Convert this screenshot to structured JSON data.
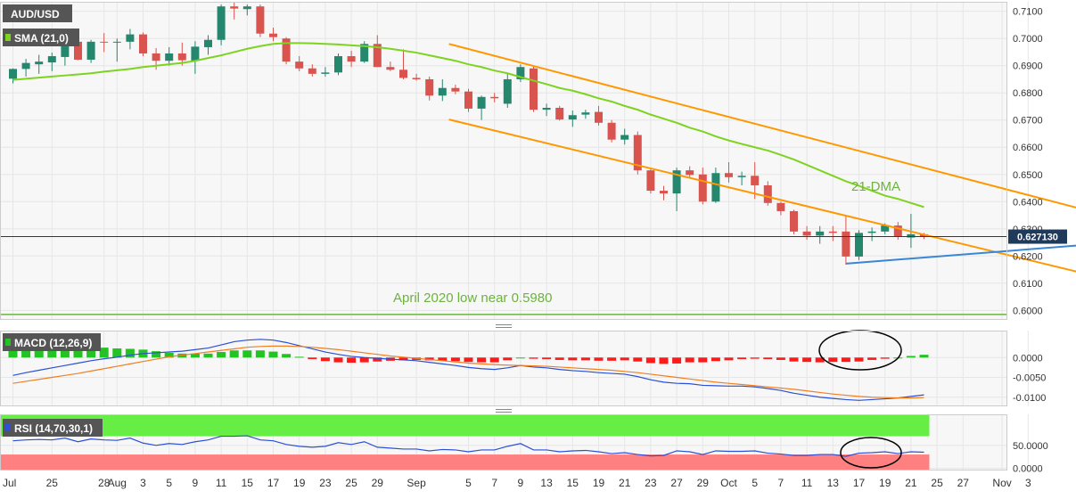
{
  "colors": {
    "up": "#26876f",
    "down": "#d9534f",
    "sma": "#7ed321",
    "channel": "#ff9800",
    "support": "#3a86d6",
    "price_line": "#1f3a5a",
    "panel_bg": "#f7f7f7",
    "grid": "#e6e6e6",
    "label_bg": "#555555",
    "macd_line": "#2b4fd6",
    "signal_line": "#f07f22",
    "hist_pos": "#22c322",
    "hist_neg": "#ff1a1a",
    "rsi_line": "#2b4fd6",
    "rsi_over": "#66ee44",
    "rsi_under": "#ff8080",
    "annotation_green": "#6cb33e"
  },
  "chart_data": [
    {
      "type": "candlestick",
      "symbol_label": "AUD/USD",
      "indicator_label": "SMA (21,0)",
      "last_price_label": "0.627130",
      "last_price": 0.62713,
      "ylim": [
        0.5965,
        0.7135
      ],
      "y_ticks": [
        "0.7100",
        "0.7000",
        "0.6900",
        "0.6800",
        "0.6700",
        "0.6600",
        "0.6500",
        "0.6400",
        "0.6300",
        "0.6200",
        "0.6100",
        "0.6000"
      ],
      "x_ticks": [
        "Jul",
        "25",
        "28",
        "Aug",
        "3",
        "5",
        "9",
        "11",
        "15",
        "17",
        "19",
        "23",
        "25",
        "29",
        "Sep",
        "5",
        "7",
        "9",
        "13",
        "15",
        "19",
        "21",
        "23",
        "27",
        "29",
        "Oct",
        "5",
        "7",
        "11",
        "13",
        "17",
        "19",
        "21",
        "25",
        "27",
        "Nov",
        "3"
      ],
      "candles": [
        {
          "o": 0.6852,
          "h": 0.689,
          "l": 0.6835,
          "c": 0.6888
        },
        {
          "o": 0.6888,
          "h": 0.6925,
          "l": 0.686,
          "c": 0.691
        },
        {
          "o": 0.6905,
          "h": 0.694,
          "l": 0.687,
          "c": 0.6915
        },
        {
          "o": 0.6912,
          "h": 0.6948,
          "l": 0.688,
          "c": 0.6935
        },
        {
          "o": 0.6932,
          "h": 0.6995,
          "l": 0.69,
          "c": 0.6988
        },
        {
          "o": 0.6988,
          "h": 0.7002,
          "l": 0.692,
          "c": 0.6922
        },
        {
          "o": 0.6922,
          "h": 0.6995,
          "l": 0.691,
          "c": 0.6988
        },
        {
          "o": 0.6988,
          "h": 0.702,
          "l": 0.695,
          "c": 0.6985
        },
        {
          "o": 0.6985,
          "h": 0.7,
          "l": 0.6915,
          "c": 0.6988
        },
        {
          "o": 0.6988,
          "h": 0.7035,
          "l": 0.696,
          "c": 0.7015
        },
        {
          "o": 0.7015,
          "h": 0.7022,
          "l": 0.6935,
          "c": 0.6945
        },
        {
          "o": 0.6945,
          "h": 0.6965,
          "l": 0.6885,
          "c": 0.6918
        },
        {
          "o": 0.6918,
          "h": 0.6968,
          "l": 0.69,
          "c": 0.6945
        },
        {
          "o": 0.6945,
          "h": 0.6985,
          "l": 0.69,
          "c": 0.692
        },
        {
          "o": 0.6918,
          "h": 0.699,
          "l": 0.687,
          "c": 0.697
        },
        {
          "o": 0.6968,
          "h": 0.7012,
          "l": 0.694,
          "c": 0.6995
        },
        {
          "o": 0.6995,
          "h": 0.7125,
          "l": 0.6975,
          "c": 0.7118
        },
        {
          "o": 0.7118,
          "h": 0.7135,
          "l": 0.707,
          "c": 0.711
        },
        {
          "o": 0.7108,
          "h": 0.7125,
          "l": 0.7085,
          "c": 0.7118
        },
        {
          "o": 0.7118,
          "h": 0.7125,
          "l": 0.7005,
          "c": 0.7018
        },
        {
          "o": 0.7018,
          "h": 0.704,
          "l": 0.699,
          "c": 0.7005
        },
        {
          "o": 0.7,
          "h": 0.7005,
          "l": 0.6905,
          "c": 0.6915
        },
        {
          "o": 0.6915,
          "h": 0.6935,
          "l": 0.688,
          "c": 0.689
        },
        {
          "o": 0.689,
          "h": 0.6905,
          "l": 0.686,
          "c": 0.687
        },
        {
          "o": 0.687,
          "h": 0.6895,
          "l": 0.686,
          "c": 0.6875
        },
        {
          "o": 0.6875,
          "h": 0.6945,
          "l": 0.6865,
          "c": 0.6935
        },
        {
          "o": 0.6935,
          "h": 0.6955,
          "l": 0.6895,
          "c": 0.6915
        },
        {
          "o": 0.6915,
          "h": 0.699,
          "l": 0.691,
          "c": 0.698
        },
        {
          "o": 0.698,
          "h": 0.7012,
          "l": 0.6895,
          "c": 0.6895
        },
        {
          "o": 0.6895,
          "h": 0.6915,
          "l": 0.688,
          "c": 0.6885
        },
        {
          "o": 0.6885,
          "h": 0.696,
          "l": 0.685,
          "c": 0.6855
        },
        {
          "o": 0.6855,
          "h": 0.687,
          "l": 0.6845,
          "c": 0.685
        },
        {
          "o": 0.685,
          "h": 0.686,
          "l": 0.6772,
          "c": 0.679
        },
        {
          "o": 0.679,
          "h": 0.685,
          "l": 0.677,
          "c": 0.6818
        },
        {
          "o": 0.6818,
          "h": 0.683,
          "l": 0.6795,
          "c": 0.6805
        },
        {
          "o": 0.6805,
          "h": 0.6815,
          "l": 0.673,
          "c": 0.6742
        },
        {
          "o": 0.6742,
          "h": 0.679,
          "l": 0.67,
          "c": 0.6785
        },
        {
          "o": 0.6785,
          "h": 0.68,
          "l": 0.6765,
          "c": 0.678
        },
        {
          "o": 0.676,
          "h": 0.687,
          "l": 0.6745,
          "c": 0.685
        },
        {
          "o": 0.685,
          "h": 0.6905,
          "l": 0.684,
          "c": 0.6895
        },
        {
          "o": 0.689,
          "h": 0.69,
          "l": 0.673,
          "c": 0.6738
        },
        {
          "o": 0.6738,
          "h": 0.676,
          "l": 0.6715,
          "c": 0.6745
        },
        {
          "o": 0.6745,
          "h": 0.6752,
          "l": 0.6698,
          "c": 0.6702
        },
        {
          "o": 0.6702,
          "h": 0.6735,
          "l": 0.6675,
          "c": 0.6718
        },
        {
          "o": 0.672,
          "h": 0.6738,
          "l": 0.6705,
          "c": 0.6728
        },
        {
          "o": 0.673,
          "h": 0.6752,
          "l": 0.668,
          "c": 0.669
        },
        {
          "o": 0.669,
          "h": 0.67,
          "l": 0.6618,
          "c": 0.6628
        },
        {
          "o": 0.6628,
          "h": 0.6668,
          "l": 0.661,
          "c": 0.6645
        },
        {
          "o": 0.6645,
          "h": 0.6658,
          "l": 0.65,
          "c": 0.6515
        },
        {
          "o": 0.6515,
          "h": 0.652,
          "l": 0.643,
          "c": 0.644
        },
        {
          "o": 0.644,
          "h": 0.6458,
          "l": 0.6405,
          "c": 0.643
        },
        {
          "o": 0.643,
          "h": 0.6525,
          "l": 0.6365,
          "c": 0.6515
        },
        {
          "o": 0.6515,
          "h": 0.653,
          "l": 0.6485,
          "c": 0.6498
        },
        {
          "o": 0.65,
          "h": 0.6525,
          "l": 0.639,
          "c": 0.64
        },
        {
          "o": 0.64,
          "h": 0.6525,
          "l": 0.6395,
          "c": 0.6505
        },
        {
          "o": 0.6505,
          "h": 0.6545,
          "l": 0.647,
          "c": 0.649
        },
        {
          "o": 0.649,
          "h": 0.651,
          "l": 0.646,
          "c": 0.6495
        },
        {
          "o": 0.6495,
          "h": 0.6545,
          "l": 0.641,
          "c": 0.646
        },
        {
          "o": 0.646,
          "h": 0.6475,
          "l": 0.6385,
          "c": 0.6395
        },
        {
          "o": 0.6395,
          "h": 0.64,
          "l": 0.635,
          "c": 0.6365
        },
        {
          "o": 0.6365,
          "h": 0.637,
          "l": 0.628,
          "c": 0.629
        },
        {
          "o": 0.629,
          "h": 0.631,
          "l": 0.626,
          "c": 0.6275
        },
        {
          "o": 0.6275,
          "h": 0.631,
          "l": 0.6245,
          "c": 0.629
        },
        {
          "o": 0.629,
          "h": 0.631,
          "l": 0.6255,
          "c": 0.6285
        },
        {
          "o": 0.629,
          "h": 0.6345,
          "l": 0.6168,
          "c": 0.6198
        },
        {
          "o": 0.6198,
          "h": 0.6295,
          "l": 0.6185,
          "c": 0.6285
        },
        {
          "o": 0.6285,
          "h": 0.6305,
          "l": 0.6255,
          "c": 0.629
        },
        {
          "o": 0.629,
          "h": 0.632,
          "l": 0.628,
          "c": 0.6312
        },
        {
          "o": 0.6312,
          "h": 0.6325,
          "l": 0.626,
          "c": 0.627
        },
        {
          "o": 0.6268,
          "h": 0.6355,
          "l": 0.623,
          "c": 0.628
        },
        {
          "o": 0.628,
          "h": 0.6285,
          "l": 0.6262,
          "c": 0.6271
        }
      ],
      "sma": [
        0.6848,
        0.6852,
        0.6856,
        0.686,
        0.6864,
        0.6868,
        0.6872,
        0.6878,
        0.6883,
        0.6888,
        0.6895,
        0.69,
        0.6905,
        0.691,
        0.6918,
        0.6928,
        0.6938,
        0.695,
        0.6962,
        0.6972,
        0.698,
        0.6983,
        0.6983,
        0.6982,
        0.698,
        0.6978,
        0.6975,
        0.6972,
        0.6968,
        0.6962,
        0.6955,
        0.6948,
        0.6938,
        0.6928,
        0.6918,
        0.6905,
        0.6895,
        0.6882,
        0.6872,
        0.6858,
        0.6845,
        0.6832,
        0.6818,
        0.6808,
        0.6795,
        0.678,
        0.6768,
        0.6752,
        0.6738,
        0.672,
        0.6705,
        0.669,
        0.6672,
        0.6658,
        0.664,
        0.6625,
        0.6612,
        0.66,
        0.6588,
        0.6572,
        0.6555,
        0.6535,
        0.6515,
        0.6495,
        0.6475,
        0.6458,
        0.644,
        0.6422,
        0.641,
        0.6395,
        0.638
      ],
      "lines": {
        "channel_upper": {
          "from": [
            33.5,
            0.698
          ],
          "to": [
            91,
            0.6262
          ]
        },
        "channel_lower": {
          "from": [
            33.5,
            0.6702
          ],
          "to": [
            91,
            0.6035
          ]
        },
        "support": {
          "from": [
            64,
            0.6172
          ],
          "to": [
            95,
            0.6288
          ]
        },
        "april_low_line": 0.5985
      },
      "annotations": {
        "dma_label": "21-DMA",
        "april_label": "April 2020 low near 0.5980"
      }
    },
    {
      "type": "bar+line",
      "indicator_label": "MACD (12,26,9)",
      "ylim": [
        -0.0123,
        0.0068
      ],
      "y_ticks": [
        "0.0000",
        "-0.0050",
        "-0.0100"
      ],
      "y_tick_values": [
        0,
        -0.005,
        -0.01
      ],
      "macd": [
        -0.0045,
        -0.0038,
        -0.0032,
        -0.0026,
        -0.002,
        -0.0014,
        -0.0008,
        -0.0003,
        0.0001,
        0.0006,
        0.001,
        0.0012,
        0.0014,
        0.0016,
        0.002,
        0.0024,
        0.0032,
        0.004,
        0.0044,
        0.0046,
        0.0044,
        0.0038,
        0.003,
        0.0022,
        0.0014,
        0.0008,
        0.0003,
        0.0,
        -0.0002,
        -0.0004,
        -0.0006,
        -0.0008,
        -0.0012,
        -0.0016,
        -0.002,
        -0.0025,
        -0.0028,
        -0.003,
        -0.0026,
        -0.002,
        -0.0024,
        -0.0026,
        -0.003,
        -0.0033,
        -0.0035,
        -0.0038,
        -0.004,
        -0.0042,
        -0.0048,
        -0.0056,
        -0.0062,
        -0.0065,
        -0.0066,
        -0.007,
        -0.0071,
        -0.0072,
        -0.0072,
        -0.0074,
        -0.0078,
        -0.0083,
        -0.009,
        -0.0095,
        -0.01,
        -0.0103,
        -0.0106,
        -0.0108,
        -0.0106,
        -0.0104,
        -0.0102,
        -0.0098,
        -0.0094
      ],
      "signal": [
        -0.0065,
        -0.006,
        -0.0055,
        -0.005,
        -0.0045,
        -0.004,
        -0.0034,
        -0.0028,
        -0.0022,
        -0.0016,
        -0.001,
        -0.0004,
        0.0002,
        0.0006,
        0.001,
        0.0014,
        0.0018,
        0.0022,
        0.0026,
        0.0028,
        0.0029,
        0.0029,
        0.0028,
        0.0026,
        0.0023,
        0.002,
        0.0016,
        0.0012,
        0.0008,
        0.0004,
        0.0001,
        -0.0002,
        -0.0005,
        -0.0008,
        -0.0011,
        -0.0014,
        -0.0016,
        -0.0018,
        -0.0019,
        -0.002,
        -0.0021,
        -0.0022,
        -0.0024,
        -0.0026,
        -0.0028,
        -0.003,
        -0.0032,
        -0.0035,
        -0.0038,
        -0.0042,
        -0.0046,
        -0.005,
        -0.0054,
        -0.0058,
        -0.0062,
        -0.0065,
        -0.0068,
        -0.0071,
        -0.0074,
        -0.0077,
        -0.008,
        -0.0084,
        -0.0088,
        -0.0092,
        -0.0095,
        -0.0098,
        -0.01,
        -0.0101,
        -0.0102,
        -0.0102,
        -0.0101
      ],
      "hist": [
        0.002,
        0.0022,
        0.0023,
        0.0024,
        0.0025,
        0.0026,
        0.0026,
        0.0025,
        0.0023,
        0.0022,
        0.002,
        0.0016,
        0.0012,
        0.001,
        0.001,
        0.001,
        0.0014,
        0.0018,
        0.0018,
        0.0018,
        0.0015,
        0.0009,
        0.0002,
        -0.0004,
        -0.0009,
        -0.0012,
        -0.0013,
        -0.0012,
        -0.001,
        -0.0008,
        -0.0007,
        -0.0006,
        -0.0007,
        -0.0008,
        -0.0009,
        -0.0011,
        -0.0012,
        -0.0012,
        -0.0007,
        0.0,
        -0.0003,
        -0.0004,
        -0.0006,
        -0.0007,
        -0.0007,
        -0.0008,
        -0.0008,
        -0.0007,
        -0.001,
        -0.0014,
        -0.0016,
        -0.0015,
        -0.0012,
        -0.0012,
        -0.0009,
        -0.0007,
        -0.0004,
        -0.0003,
        -0.0004,
        -0.0006,
        -0.001,
        -0.0011,
        -0.0012,
        -0.0011,
        -0.0011,
        -0.001,
        -0.0006,
        -0.0003,
        0.0,
        0.0004,
        0.0007
      ]
    },
    {
      "type": "line",
      "indicator_label": "RSI (14,70,30,1)",
      "ylim": [
        -5,
        118
      ],
      "y_ticks": [
        "50.0000",
        "0.0000"
      ],
      "y_tick_values": [
        50,
        0
      ],
      "overbought": 70,
      "oversold": 30,
      "rsi": [
        60,
        62,
        63,
        62,
        66,
        58,
        64,
        62,
        61,
        66,
        55,
        50,
        54,
        52,
        58,
        62,
        70,
        70,
        71,
        62,
        60,
        52,
        48,
        46,
        48,
        56,
        52,
        58,
        46,
        44,
        42,
        42,
        38,
        41,
        40,
        36,
        40,
        40,
        48,
        54,
        40,
        40,
        36,
        38,
        39,
        36,
        32,
        34,
        30,
        27,
        28,
        38,
        36,
        30,
        38,
        37,
        37,
        38,
        33,
        31,
        28,
        28,
        30,
        30,
        26,
        33,
        34,
        36,
        32,
        36,
        35
      ]
    }
  ]
}
